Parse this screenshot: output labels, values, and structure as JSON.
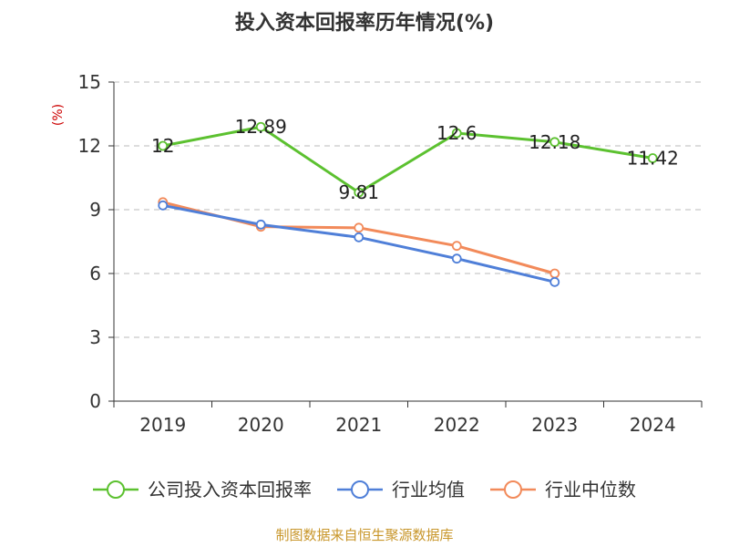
{
  "chart_data": {
    "type": "line",
    "title": "投入资本回报率历年情况(%)",
    "ylabel": "(%)",
    "xlabel": "",
    "categories": [
      "2019",
      "2020",
      "2021",
      "2022",
      "2023",
      "2024"
    ],
    "ylim": [
      0,
      15
    ],
    "yticks": [
      0,
      3,
      6,
      9,
      12,
      15
    ],
    "grid": true,
    "legend_position": "bottom",
    "series": [
      {
        "name": "公司投入资本回报率",
        "color": "#5cc130",
        "values": [
          12,
          12.89,
          9.81,
          12.6,
          12.18,
          11.42
        ],
        "labels": [
          "12",
          "12.89",
          "9.81",
          "12.6",
          "12.18",
          "11.42"
        ]
      },
      {
        "name": "行业均值",
        "color": "#4f7fd8",
        "values": [
          9.2,
          8.3,
          7.7,
          6.7,
          5.6,
          null
        ]
      },
      {
        "name": "行业中位数",
        "color": "#f28a5a",
        "values": [
          9.35,
          8.2,
          8.15,
          7.3,
          6.0,
          null
        ]
      }
    ]
  },
  "source": "制图数据来自恒生聚源数据库"
}
